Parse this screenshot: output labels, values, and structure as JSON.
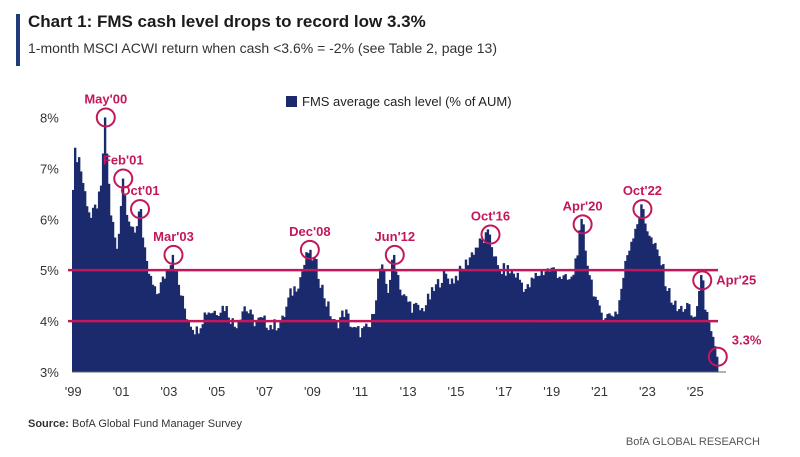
{
  "header": {
    "title": "Chart 1: FMS cash level drops to record low 3.3%",
    "subtitle": "1-month MSCI ACWI return when cash <3.6% = -2% (see Table 2, page 13)"
  },
  "footer": {
    "source_label": "Source:",
    "source_text": "BofA Global Fund Manager Survey",
    "brand": "BofA GLOBAL RESEARCH"
  },
  "colors": {
    "bar": "#1a2a6c",
    "threshold_line": "#c2185b",
    "annotation": "#c2185b",
    "axis_text": "#333333"
  },
  "chart_data": {
    "type": "bar",
    "title": "Chart 1: FMS cash level drops to record low 3.3%",
    "ylim": [
      3,
      8.5
    ],
    "yticks": [
      3,
      4,
      5,
      6,
      7,
      8
    ],
    "ytick_labels": [
      "3%",
      "4%",
      "5%",
      "6%",
      "7%",
      "8%"
    ],
    "xticks": [
      "'99",
      "'01",
      "'03",
      "'05",
      "'07",
      "'09",
      "'11",
      "'13",
      "'15",
      "'17",
      "'19",
      "'21",
      "'23",
      "'25"
    ],
    "xtick_years": [
      1999,
      2001,
      2003,
      2005,
      2007,
      2009,
      2011,
      2013,
      2015,
      2017,
      2019,
      2021,
      2023,
      2025
    ],
    "series": [
      {
        "name": "FMS average cash level (% of AUM)",
        "x_start": "1999-01",
        "x_end": "2025-12",
        "anchors": [
          [
            1999.0,
            6.3
          ],
          [
            1999.1,
            7.3
          ],
          [
            1999.3,
            7.2
          ],
          [
            1999.5,
            6.6
          ],
          [
            1999.8,
            6.0
          ],
          [
            2000.2,
            6.5
          ],
          [
            2000.37,
            8.0
          ],
          [
            2000.6,
            6.2
          ],
          [
            2000.9,
            5.3
          ],
          [
            2001.1,
            6.8
          ],
          [
            2001.3,
            6.2
          ],
          [
            2001.6,
            5.6
          ],
          [
            2001.8,
            6.2
          ],
          [
            2002.1,
            5.1
          ],
          [
            2002.5,
            4.5
          ],
          [
            2002.8,
            4.8
          ],
          [
            2003.2,
            5.3
          ],
          [
            2003.5,
            4.6
          ],
          [
            2003.8,
            4.1
          ],
          [
            2004.2,
            3.8
          ],
          [
            2004.6,
            4.2
          ],
          [
            2005.0,
            4.2
          ],
          [
            2005.4,
            4.3
          ],
          [
            2005.8,
            3.9
          ],
          [
            2006.2,
            4.3
          ],
          [
            2006.6,
            4.0
          ],
          [
            2007.0,
            4.0
          ],
          [
            2007.4,
            3.9
          ],
          [
            2007.8,
            4.0
          ],
          [
            2008.1,
            4.5
          ],
          [
            2008.5,
            4.8
          ],
          [
            2008.9,
            5.4
          ],
          [
            2009.2,
            5.1
          ],
          [
            2009.6,
            4.4
          ],
          [
            2010.0,
            3.9
          ],
          [
            2010.4,
            4.2
          ],
          [
            2010.8,
            3.8
          ],
          [
            2011.2,
            3.8
          ],
          [
            2011.5,
            3.9
          ],
          [
            2011.9,
            5.1
          ],
          [
            2012.2,
            4.6
          ],
          [
            2012.45,
            5.3
          ],
          [
            2012.8,
            4.5
          ],
          [
            2013.2,
            4.3
          ],
          [
            2013.6,
            4.2
          ],
          [
            2014.0,
            4.5
          ],
          [
            2014.5,
            4.9
          ],
          [
            2014.9,
            4.8
          ],
          [
            2015.3,
            5.0
          ],
          [
            2015.8,
            5.4
          ],
          [
            2016.2,
            5.6
          ],
          [
            2016.45,
            5.7
          ],
          [
            2016.8,
            5.0
          ],
          [
            2017.2,
            5.0
          ],
          [
            2017.6,
            4.9
          ],
          [
            2018.0,
            4.6
          ],
          [
            2018.4,
            4.9
          ],
          [
            2018.8,
            5.0
          ],
          [
            2019.2,
            5.0
          ],
          [
            2019.6,
            4.8
          ],
          [
            2019.9,
            4.8
          ],
          [
            2020.3,
            5.9
          ],
          [
            2020.6,
            5.0
          ],
          [
            2021.0,
            4.2
          ],
          [
            2021.4,
            4.1
          ],
          [
            2021.8,
            4.2
          ],
          [
            2022.2,
            5.3
          ],
          [
            2022.5,
            5.8
          ],
          [
            2022.8,
            6.2
          ],
          [
            2023.2,
            5.6
          ],
          [
            2023.6,
            5.2
          ],
          [
            2023.9,
            4.6
          ],
          [
            2024.3,
            4.2
          ],
          [
            2024.7,
            4.3
          ],
          [
            2025.0,
            4.0
          ],
          [
            2025.3,
            4.8
          ],
          [
            2025.6,
            3.9
          ],
          [
            2025.95,
            3.3
          ]
        ]
      }
    ],
    "reference_lines": [
      5.0,
      4.0
    ],
    "annotations": [
      {
        "label": "May'00",
        "x": 2000.37,
        "y": 8.0
      },
      {
        "label": "Feb'01",
        "x": 2001.1,
        "y": 6.8
      },
      {
        "label": "Oct'01",
        "x": 2001.8,
        "y": 6.2
      },
      {
        "label": "Mar'03",
        "x": 2003.2,
        "y": 5.3
      },
      {
        "label": "Dec'08",
        "x": 2008.9,
        "y": 5.4
      },
      {
        "label": "Jun'12",
        "x": 2012.45,
        "y": 5.3
      },
      {
        "label": "Oct'16",
        "x": 2016.45,
        "y": 5.7
      },
      {
        "label": "Apr'20",
        "x": 2020.3,
        "y": 5.9
      },
      {
        "label": "Oct'22",
        "x": 2022.8,
        "y": 6.2
      },
      {
        "label": "Apr'25",
        "x": 2025.3,
        "y": 4.8
      },
      {
        "label": "3.3%",
        "x": 2025.95,
        "y": 3.3
      }
    ]
  }
}
